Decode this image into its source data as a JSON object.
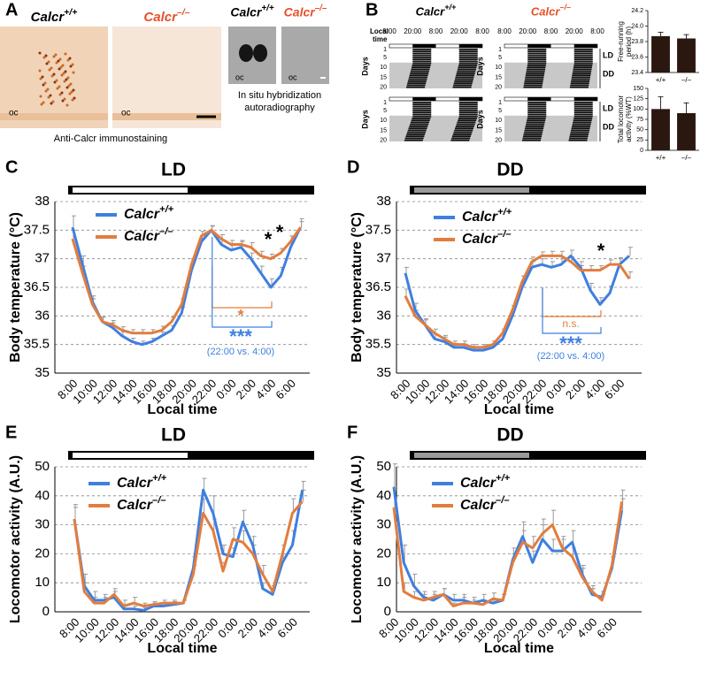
{
  "panel_a": {
    "letter": "A",
    "genotypes": [
      "Calcr+/+",
      "Calcr–/–"
    ],
    "oc_label": "oc",
    "immuno_caption": "Anti-Calcr immunostaining",
    "in_situ_caption": [
      "In situ hybridization",
      "autoradiography"
    ]
  },
  "panel_b": {
    "letter": "B",
    "genotypes": [
      "Calcr+/+",
      "Calcr–/–"
    ],
    "local_time_label": [
      "Local",
      "time"
    ],
    "time_ticks": [
      "8:00",
      "20:00",
      "8:00",
      "20:00",
      "8:00"
    ],
    "days_label": "Days",
    "day_ticks": [
      1,
      5,
      10,
      15,
      20
    ],
    "conditions": [
      "LD",
      "DD"
    ]
  },
  "chart_data": [
    {
      "type": "bar",
      "categories": [
        "+/+",
        "–/–"
      ],
      "values": [
        23.87,
        23.84
      ],
      "errors": [
        0.05,
        0.05
      ],
      "color": "#2a1810",
      "ylim": [
        23.4,
        24.2
      ],
      "yticks": [
        23.4,
        23.6,
        23.8,
        {
          "value": 24,
          "label": "24.0"
        },
        24.2
      ],
      "ylabel": [
        "Free-running",
        "period (h)"
      ]
    },
    {
      "type": "bar",
      "categories": [
        "+/+",
        "–/–"
      ],
      "values": [
        100,
        90
      ],
      "errors": [
        30,
        25
      ],
      "color": "#2a1810",
      "ylim": [
        0,
        150
      ],
      "yticks": [
        0,
        25,
        50,
        75,
        100,
        125,
        150
      ],
      "ylabel": [
        "Total locomotor",
        "activity (%WT)"
      ]
    },
    {
      "type": "line",
      "panel": "C",
      "title": "LD",
      "categories": [
        "8:00",
        null,
        "10:00",
        null,
        "12:00",
        null,
        "14:00",
        null,
        "16:00",
        null,
        "18:00",
        null,
        "20:00",
        null,
        "22:00",
        null,
        "0:00",
        null,
        "2:00",
        null,
        "4:00",
        null,
        "6:00",
        null
      ],
      "series": [
        {
          "name": "Calcr+/+",
          "color": "#3f7fe0",
          "values": [
            37.55,
            36.9,
            36.25,
            35.9,
            35.8,
            35.65,
            35.55,
            35.5,
            35.55,
            35.65,
            35.75,
            36.05,
            36.8,
            37.3,
            37.5,
            37.25,
            37.15,
            37.2,
            37.0,
            36.75,
            36.5,
            36.7,
            37.2,
            37.55
          ],
          "errors": [
            0.2,
            0.15,
            0.1,
            0.08,
            0.08,
            0.07,
            0.06,
            0.06,
            0.06,
            0.07,
            0.08,
            0.1,
            0.12,
            0.1,
            0.08,
            0.08,
            0.08,
            0.1,
            0.1,
            0.12,
            0.15,
            0.15,
            0.12,
            0.15
          ]
        },
        {
          "name": "Calcr–/–",
          "color": "#e27d3e",
          "values": [
            37.35,
            36.75,
            36.2,
            35.9,
            35.85,
            35.75,
            35.7,
            35.7,
            35.7,
            35.75,
            35.9,
            36.2,
            36.9,
            37.4,
            37.5,
            37.35,
            37.25,
            37.25,
            37.2,
            37.05,
            37.0,
            37.1,
            37.3,
            37.55
          ],
          "errors": [
            0.15,
            0.12,
            0.1,
            0.08,
            0.07,
            0.06,
            0.06,
            0.06,
            0.06,
            0.07,
            0.08,
            0.1,
            0.1,
            0.08,
            0.07,
            0.07,
            0.07,
            0.07,
            0.08,
            0.08,
            0.08,
            0.08,
            0.1,
            0.1
          ]
        }
      ],
      "ylim": [
        35,
        38
      ],
      "yticks": [
        35,
        35.5,
        36,
        36.5,
        37,
        37.5,
        38
      ],
      "grid": true,
      "ylabel": "Body temperature (°C)",
      "xlabel": "Local time",
      "annotations": [
        {
          "text": "*",
          "color": "#000000"
        },
        {
          "text": "*",
          "color": "#000000"
        },
        {
          "text": "*",
          "color": "#e27d3e"
        },
        {
          "text": "***",
          "color": "#3f7fe0"
        },
        {
          "text": "(22:00 vs. 4:00)",
          "color": "#3f7fe0"
        }
      ]
    },
    {
      "type": "line",
      "panel": "D",
      "title": "DD",
      "categories": [
        "8:00",
        null,
        "10:00",
        null,
        "12:00",
        null,
        "14:00",
        null,
        "16:00",
        null,
        "18:00",
        null,
        "20:00",
        null,
        "22:00",
        null,
        "0:00",
        null,
        "2:00",
        null,
        "4:00",
        null,
        "6:00",
        null
      ],
      "series": [
        {
          "name": "Calcr+/+",
          "color": "#3f7fe0",
          "values": [
            36.75,
            36.1,
            35.85,
            35.6,
            35.55,
            35.45,
            35.45,
            35.4,
            35.4,
            35.45,
            35.6,
            36.0,
            36.5,
            36.85,
            36.9,
            36.85,
            36.9,
            37.05,
            36.85,
            36.45,
            36.2,
            36.4,
            36.9,
            37.05
          ],
          "errors": [
            0.1,
            0.12,
            0.1,
            0.08,
            0.08,
            0.07,
            0.06,
            0.06,
            0.06,
            0.07,
            0.08,
            0.1,
            0.12,
            0.1,
            0.1,
            0.1,
            0.1,
            0.1,
            0.1,
            0.12,
            0.12,
            0.12,
            0.12,
            0.15
          ]
        },
        {
          "name": "Calcr–/–",
          "color": "#e27d3e",
          "values": [
            36.35,
            36.0,
            35.85,
            35.7,
            35.6,
            35.5,
            35.5,
            35.45,
            35.45,
            35.5,
            35.7,
            36.1,
            36.6,
            36.95,
            37.05,
            37.05,
            37.05,
            36.95,
            36.8,
            36.8,
            36.8,
            36.9,
            36.9,
            36.65
          ],
          "errors": [
            0.12,
            0.1,
            0.08,
            0.07,
            0.06,
            0.06,
            0.06,
            0.05,
            0.05,
            0.06,
            0.07,
            0.08,
            0.1,
            0.08,
            0.07,
            0.08,
            0.08,
            0.08,
            0.08,
            0.08,
            0.08,
            0.08,
            0.1,
            0.12
          ]
        }
      ],
      "ylim": [
        35,
        38
      ],
      "yticks": [
        35,
        35.5,
        36,
        36.5,
        37,
        37.5,
        38
      ],
      "grid": true,
      "ylabel": "Body temperature (°C)",
      "xlabel": "Local time",
      "annotations": [
        {
          "text": "*",
          "color": "#000000"
        },
        {
          "text": "n.s.",
          "color": "#e27d3e"
        },
        {
          "text": "***",
          "color": "#3f7fe0"
        },
        {
          "text": "(22:00 vs. 4:00)",
          "color": "#3f7fe0"
        }
      ]
    },
    {
      "type": "line",
      "panel": "E",
      "title": "LD",
      "categories": [
        "8:00",
        null,
        "10:00",
        null,
        "12:00",
        null,
        "14:00",
        null,
        "16:00",
        null,
        "18:00",
        null,
        "20:00",
        null,
        "22:00",
        null,
        "0:00",
        null,
        "2:00",
        null,
        "4:00",
        null,
        "6:00",
        null
      ],
      "series": [
        {
          "name": "Calcr+/+",
          "color": "#3f7fe0",
          "values": [
            32,
            9,
            4,
            4,
            5,
            1,
            1,
            0.5,
            2,
            2,
            2.5,
            3,
            15,
            42,
            34,
            20,
            19,
            31,
            23,
            8,
            6,
            17,
            23,
            42
          ],
          "errors": [
            5,
            4,
            3,
            2,
            2,
            1,
            1,
            1,
            1,
            1,
            1,
            1,
            4,
            4,
            6,
            3,
            3,
            4,
            3,
            2,
            2,
            3,
            5,
            3
          ]
        },
        {
          "name": "Calcr–/–",
          "color": "#e27d3e",
          "values": [
            32,
            7,
            3,
            3,
            6,
            2,
            3,
            2,
            2.5,
            3,
            3,
            3,
            13,
            34,
            28,
            14,
            25,
            24,
            20,
            13,
            7,
            20,
            34,
            38
          ],
          "errors": [
            4,
            3,
            2,
            2,
            2,
            2,
            2,
            1,
            1,
            1,
            1,
            1,
            3,
            5,
            4,
            3,
            4,
            4,
            3,
            3,
            2,
            3,
            5,
            4
          ]
        }
      ],
      "ylim": [
        0,
        50
      ],
      "yticks": [
        0,
        10,
        20,
        30,
        40,
        50
      ],
      "grid": true,
      "ylabel": "Locomotor activity (A.U.)",
      "xlabel": "Local time"
    },
    {
      "type": "line",
      "panel": "F",
      "title": "DD",
      "categories": [
        "8:00",
        null,
        "10:00",
        null,
        "12:00",
        null,
        "14:00",
        null,
        "16:00",
        null,
        "18:00",
        null,
        "20:00",
        null,
        "22:00",
        null,
        "0:00",
        null,
        "2:00",
        null,
        "4:00",
        null,
        "6:00",
        null
      ],
      "series": [
        {
          "name": "Calcr+/+",
          "color": "#3f7fe0",
          "values": [
            43,
            17,
            9,
            5,
            4,
            6,
            4,
            4,
            3,
            4,
            3,
            4,
            18,
            26,
            17,
            25,
            21,
            21,
            24,
            13,
            6,
            5,
            15,
            35
          ],
          "errors": [
            8,
            6,
            4,
            2,
            2,
            2,
            2,
            2,
            2,
            2,
            1,
            2,
            4,
            5,
            4,
            5,
            4,
            4,
            4,
            3,
            2,
            2,
            4,
            4
          ]
        },
        {
          "name": "Calcr–/–",
          "color": "#e27d3e",
          "values": [
            36,
            7,
            5,
            4,
            5,
            6,
            2,
            3,
            3,
            2.5,
            4.5,
            4,
            17,
            24,
            22,
            27,
            30,
            22,
            19,
            12,
            7,
            4,
            16,
            38
          ],
          "errors": [
            7,
            3,
            2,
            2,
            2,
            2,
            1,
            2,
            1,
            1,
            2,
            2,
            3,
            4,
            4,
            5,
            5,
            4,
            3,
            3,
            2,
            2,
            3,
            4
          ]
        }
      ],
      "ylim": [
        0,
        50
      ],
      "yticks": [
        0,
        10,
        20,
        30,
        40,
        50
      ],
      "grid": true,
      "ylabel": "Locomotor activity (A.U.)",
      "xlabel": "Local time"
    }
  ]
}
